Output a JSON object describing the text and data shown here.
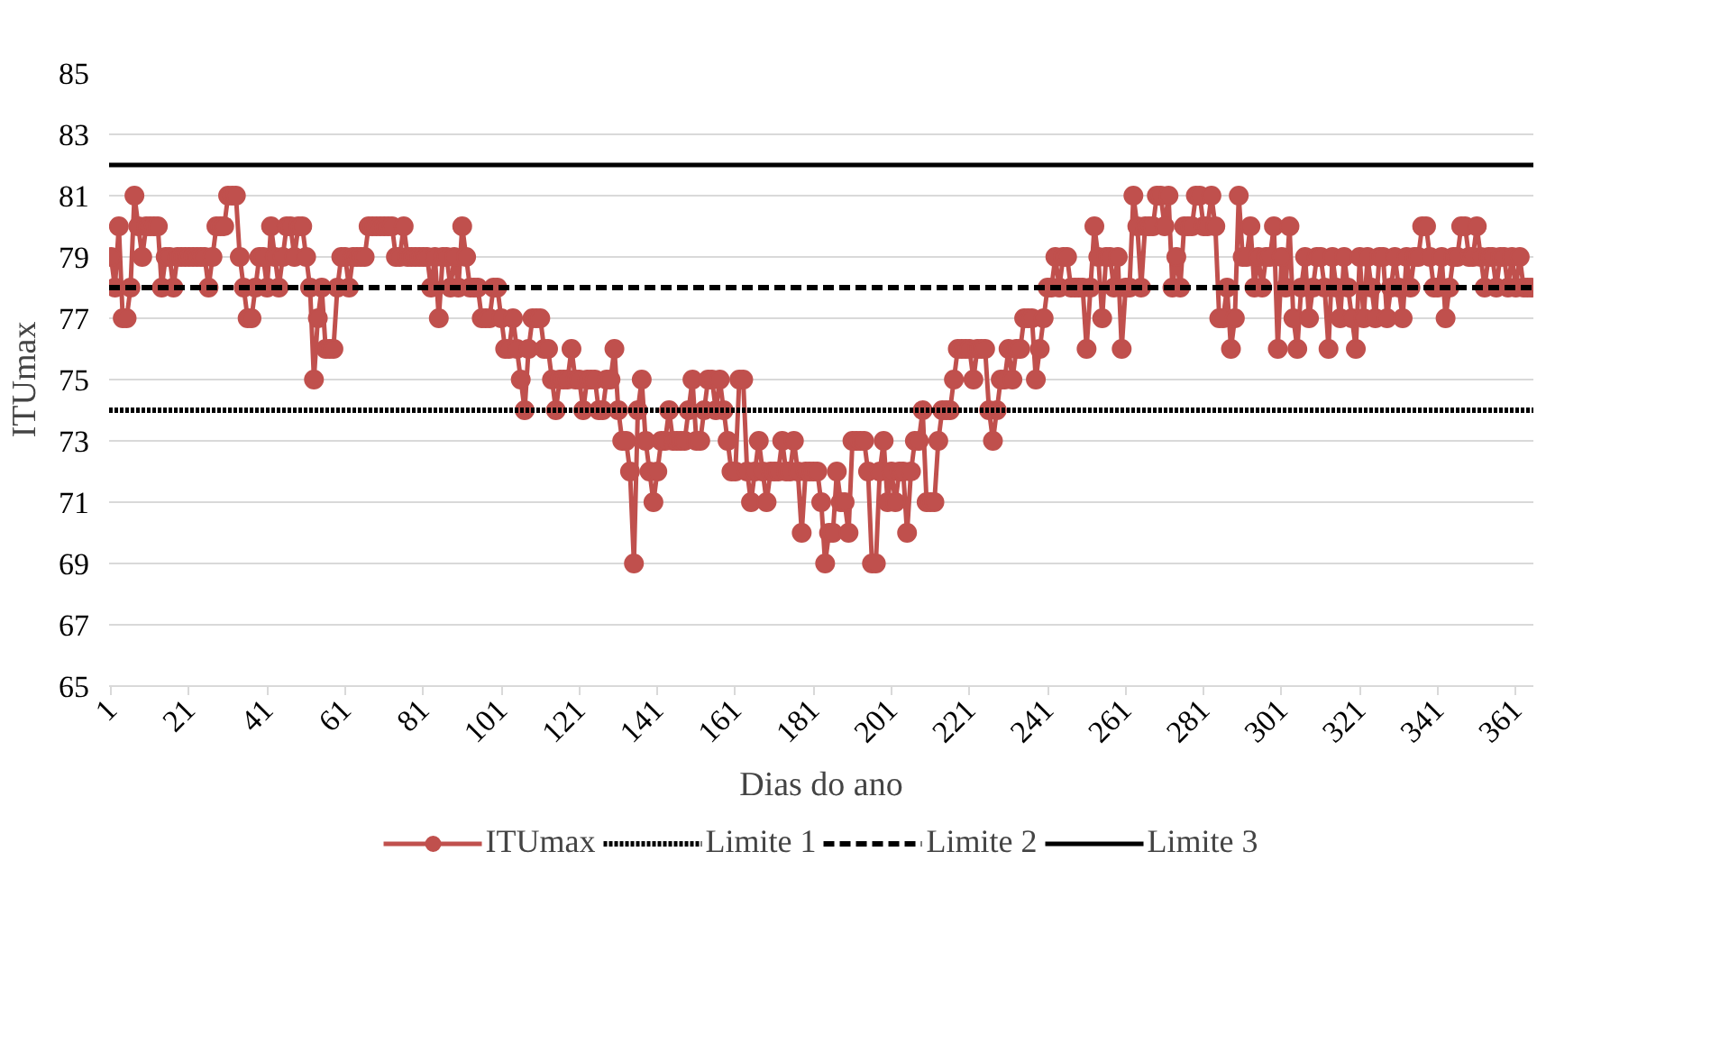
{
  "chart_data": {
    "type": "line",
    "xlabel": "Dias do ano",
    "ylabel": "ITUmax",
    "xlim": [
      0.5,
      365.5
    ],
    "xticks": [
      1,
      21,
      41,
      61,
      81,
      101,
      121,
      141,
      161,
      181,
      201,
      221,
      241,
      261,
      281,
      301,
      321,
      341,
      361
    ],
    "ylim": [
      65,
      85
    ],
    "yticks": [
      65,
      67,
      69,
      71,
      73,
      75,
      77,
      79,
      81,
      83,
      85
    ],
    "grid": "y",
    "legend": "bottom",
    "marker": "circle",
    "x": [
      1,
      2,
      3,
      4,
      5,
      6,
      7,
      8,
      9,
      10,
      11,
      12,
      13,
      14,
      15,
      16,
      17,
      18,
      19,
      20,
      21,
      22,
      23,
      24,
      25,
      26,
      27,
      28,
      29,
      30,
      31,
      32,
      33,
      34,
      35,
      36,
      37,
      38,
      39,
      40,
      41,
      42,
      43,
      44,
      45,
      46,
      47,
      48,
      49,
      50,
      51,
      52,
      53,
      54,
      55,
      56,
      57,
      58,
      59,
      60,
      61,
      62,
      63,
      64,
      65,
      66,
      67,
      68,
      69,
      70,
      71,
      72,
      73,
      74,
      75,
      76,
      77,
      78,
      79,
      80,
      81,
      82,
      83,
      84,
      85,
      86,
      87,
      88,
      89,
      90,
      91,
      92,
      93,
      94,
      95,
      96,
      97,
      98,
      99,
      100,
      101,
      102,
      103,
      104,
      105,
      106,
      107,
      108,
      109,
      110,
      111,
      112,
      113,
      114,
      115,
      116,
      117,
      118,
      119,
      120,
      121,
      122,
      123,
      124,
      125,
      126,
      127,
      128,
      129,
      130,
      131,
      132,
      133,
      134,
      135,
      136,
      137,
      138,
      139,
      140,
      141,
      142,
      143,
      144,
      145,
      146,
      147,
      148,
      149,
      150,
      151,
      152,
      153,
      154,
      155,
      156,
      157,
      158,
      159,
      160,
      161,
      162,
      163,
      164,
      165,
      166,
      167,
      168,
      169,
      170,
      171,
      172,
      173,
      174,
      175,
      176,
      177,
      178,
      179,
      180,
      181,
      182,
      183,
      184,
      185,
      186,
      187,
      188,
      189,
      190,
      191,
      192,
      193,
      194,
      195,
      196,
      197,
      198,
      199,
      200,
      201,
      202,
      203,
      204,
      205,
      206,
      207,
      208,
      209,
      210,
      211,
      212,
      213,
      214,
      215,
      216,
      217,
      218,
      219,
      220,
      221,
      222,
      223,
      224,
      225,
      226,
      227,
      228,
      229,
      230,
      231,
      232,
      233,
      234,
      235,
      236,
      237,
      238,
      239,
      240,
      241,
      242,
      243,
      244,
      245,
      246,
      247,
      248,
      249,
      250,
      251,
      252,
      253,
      254,
      255,
      256,
      257,
      258,
      259,
      260,
      261,
      262,
      263,
      264,
      265,
      266,
      267,
      268,
      269,
      270,
      271,
      272,
      273,
      274,
      275,
      276,
      277,
      278,
      279,
      280,
      281,
      282,
      283,
      284,
      285,
      286,
      287,
      288,
      289,
      290,
      291,
      292,
      293,
      294,
      295,
      296,
      297,
      298,
      299,
      300,
      301,
      302,
      303,
      304,
      305,
      306,
      307,
      308,
      309,
      310,
      311,
      312,
      313,
      314,
      315,
      316,
      317,
      318,
      319,
      320,
      321,
      322,
      323,
      324,
      325,
      326,
      327,
      328,
      329,
      330,
      331,
      332,
      333,
      334,
      335,
      336,
      337,
      338,
      339,
      340,
      341,
      342,
      343,
      344,
      345,
      346,
      347,
      348,
      349,
      350,
      351,
      352,
      353,
      354,
      355,
      356,
      357,
      358,
      359,
      360,
      361,
      362,
      363,
      364,
      365
    ],
    "series": [
      {
        "name": "ITUmax",
        "color": "#c0504d",
        "values": [
          79,
          78,
          80,
          77,
          77,
          78,
          81,
          80,
          79,
          80,
          80,
          80,
          80,
          78,
          79,
          79,
          78,
          79,
          79,
          79,
          79,
          79,
          79,
          79,
          79,
          78,
          79,
          80,
          80,
          80,
          81,
          81,
          81,
          79,
          78,
          77,
          77,
          78,
          79,
          79,
          78,
          80,
          79,
          78,
          79,
          80,
          80,
          79,
          80,
          80,
          79,
          78,
          75,
          77,
          78,
          76,
          76,
          76,
          78,
          79,
          79,
          78,
          79,
          79,
          79,
          79,
          80,
          80,
          80,
          80,
          80,
          80,
          80,
          79,
          79,
          80,
          79,
          79,
          79,
          79,
          79,
          79,
          78,
          79,
          77,
          79,
          79,
          78,
          79,
          78,
          80,
          79,
          78,
          78,
          78,
          77,
          77,
          77,
          78,
          78,
          77,
          76,
          76,
          77,
          76,
          75,
          74,
          76,
          77,
          77,
          77,
          76,
          76,
          75,
          74,
          75,
          75,
          75,
          76,
          75,
          75,
          74,
          75,
          75,
          75,
          74,
          74,
          75,
          75,
          76,
          74,
          73,
          73,
          72,
          69,
          74,
          75,
          73,
          72,
          71,
          72,
          73,
          73,
          74,
          73,
          73,
          73,
          73,
          74,
          75,
          73,
          73,
          74,
          75,
          75,
          74,
          75,
          74,
          73,
          72,
          72,
          75,
          75,
          72,
          71,
          72,
          73,
          72,
          71,
          72,
          72,
          72,
          73,
          72,
          72,
          73,
          72,
          70,
          72,
          72,
          72,
          72,
          71,
          69,
          70,
          70,
          72,
          71,
          71,
          70,
          73,
          73,
          73,
          73,
          72,
          69,
          69,
          72,
          73,
          71,
          72,
          71,
          72,
          72,
          70,
          72,
          73,
          73,
          74,
          71,
          71,
          71,
          73,
          74,
          74,
          74,
          75,
          76,
          76,
          76,
          76,
          75,
          76,
          76,
          76,
          74,
          73,
          74,
          75,
          75,
          76,
          75,
          76,
          76,
          77,
          77,
          77,
          75,
          76,
          77,
          78,
          78,
          79,
          78,
          79,
          79,
          78,
          78,
          78,
          78,
          76,
          78,
          80,
          79,
          77,
          79,
          79,
          78,
          79,
          76,
          78,
          78,
          81,
          80,
          78,
          80,
          80,
          80,
          81,
          81,
          80,
          81,
          78,
          79,
          78,
          80,
          80,
          80,
          81,
          81,
          80,
          80,
          81,
          80,
          77,
          77,
          78,
          76,
          77,
          81,
          79,
          79,
          80,
          78,
          79,
          78,
          79,
          79,
          80,
          76,
          79,
          78,
          80,
          77,
          76,
          78,
          79,
          77,
          78,
          79,
          79,
          78,
          76,
          79,
          78,
          77,
          79,
          78,
          77,
          76,
          79,
          77,
          79,
          78,
          77,
          79,
          79,
          77,
          78,
          79,
          78,
          77,
          79,
          78,
          79,
          79,
          80,
          80,
          79,
          78,
          78,
          79,
          77,
          78,
          79,
          79,
          80,
          80,
          79,
          79,
          80,
          79,
          78,
          79,
          79,
          78,
          79,
          79,
          78,
          79,
          78,
          79,
          78,
          78,
          78
        ]
      }
    ],
    "ref_lines": [
      {
        "axis": "y",
        "value": 74,
        "label": "Limite 1",
        "color": "#000000",
        "line_style": "dotted"
      },
      {
        "axis": "y",
        "value": 78,
        "label": "Limite 2",
        "color": "#000000",
        "line_style": "dashed"
      },
      {
        "axis": "y",
        "value": 82,
        "label": "Limite 3",
        "color": "#000000",
        "line_style": "solid"
      }
    ]
  }
}
